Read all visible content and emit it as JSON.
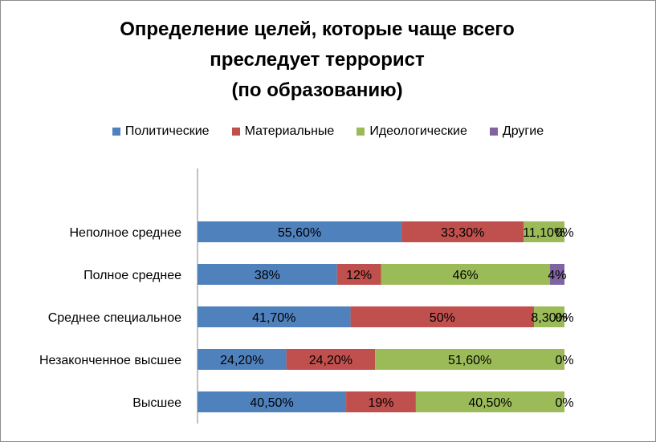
{
  "chart_data": {
    "type": "bar",
    "orientation": "horizontal",
    "stacked": true,
    "title_lines": [
      "Определение целей, которые чаще всего",
      "преследует террорист",
      "(по образованию)"
    ],
    "categories": [
      "Неполное среднее",
      "Полное среднее",
      "Среднее специальное",
      "Незаконченное высшее",
      "Высшее"
    ],
    "series": [
      {
        "name": "Политические",
        "color": "#4f81bd",
        "values": [
          55.6,
          38,
          41.7,
          24.2,
          40.5
        ],
        "labels": [
          "55,60%",
          "38%",
          "41,70%",
          "24,20%",
          "40,50%"
        ]
      },
      {
        "name": "Материальные",
        "color": "#c0504d",
        "values": [
          33.3,
          12,
          50,
          24.2,
          19
        ],
        "labels": [
          "33,30%",
          "12%",
          "50%",
          "24,20%",
          "19%"
        ]
      },
      {
        "name": "Идеологические",
        "color": "#9bbb59",
        "values": [
          11.1,
          46,
          8.3,
          51.6,
          40.5
        ],
        "labels": [
          "11,10%",
          "46%",
          "8,30%",
          "51,60%",
          "40,50%"
        ]
      },
      {
        "name": "Другие",
        "color": "#8064a2",
        "values": [
          0,
          4,
          0,
          0,
          0
        ],
        "labels": [
          "0%",
          "4%",
          "0%",
          "0%",
          "0%"
        ]
      }
    ],
    "xlim": [
      0,
      100
    ],
    "legend_position": "top",
    "grid": false
  }
}
